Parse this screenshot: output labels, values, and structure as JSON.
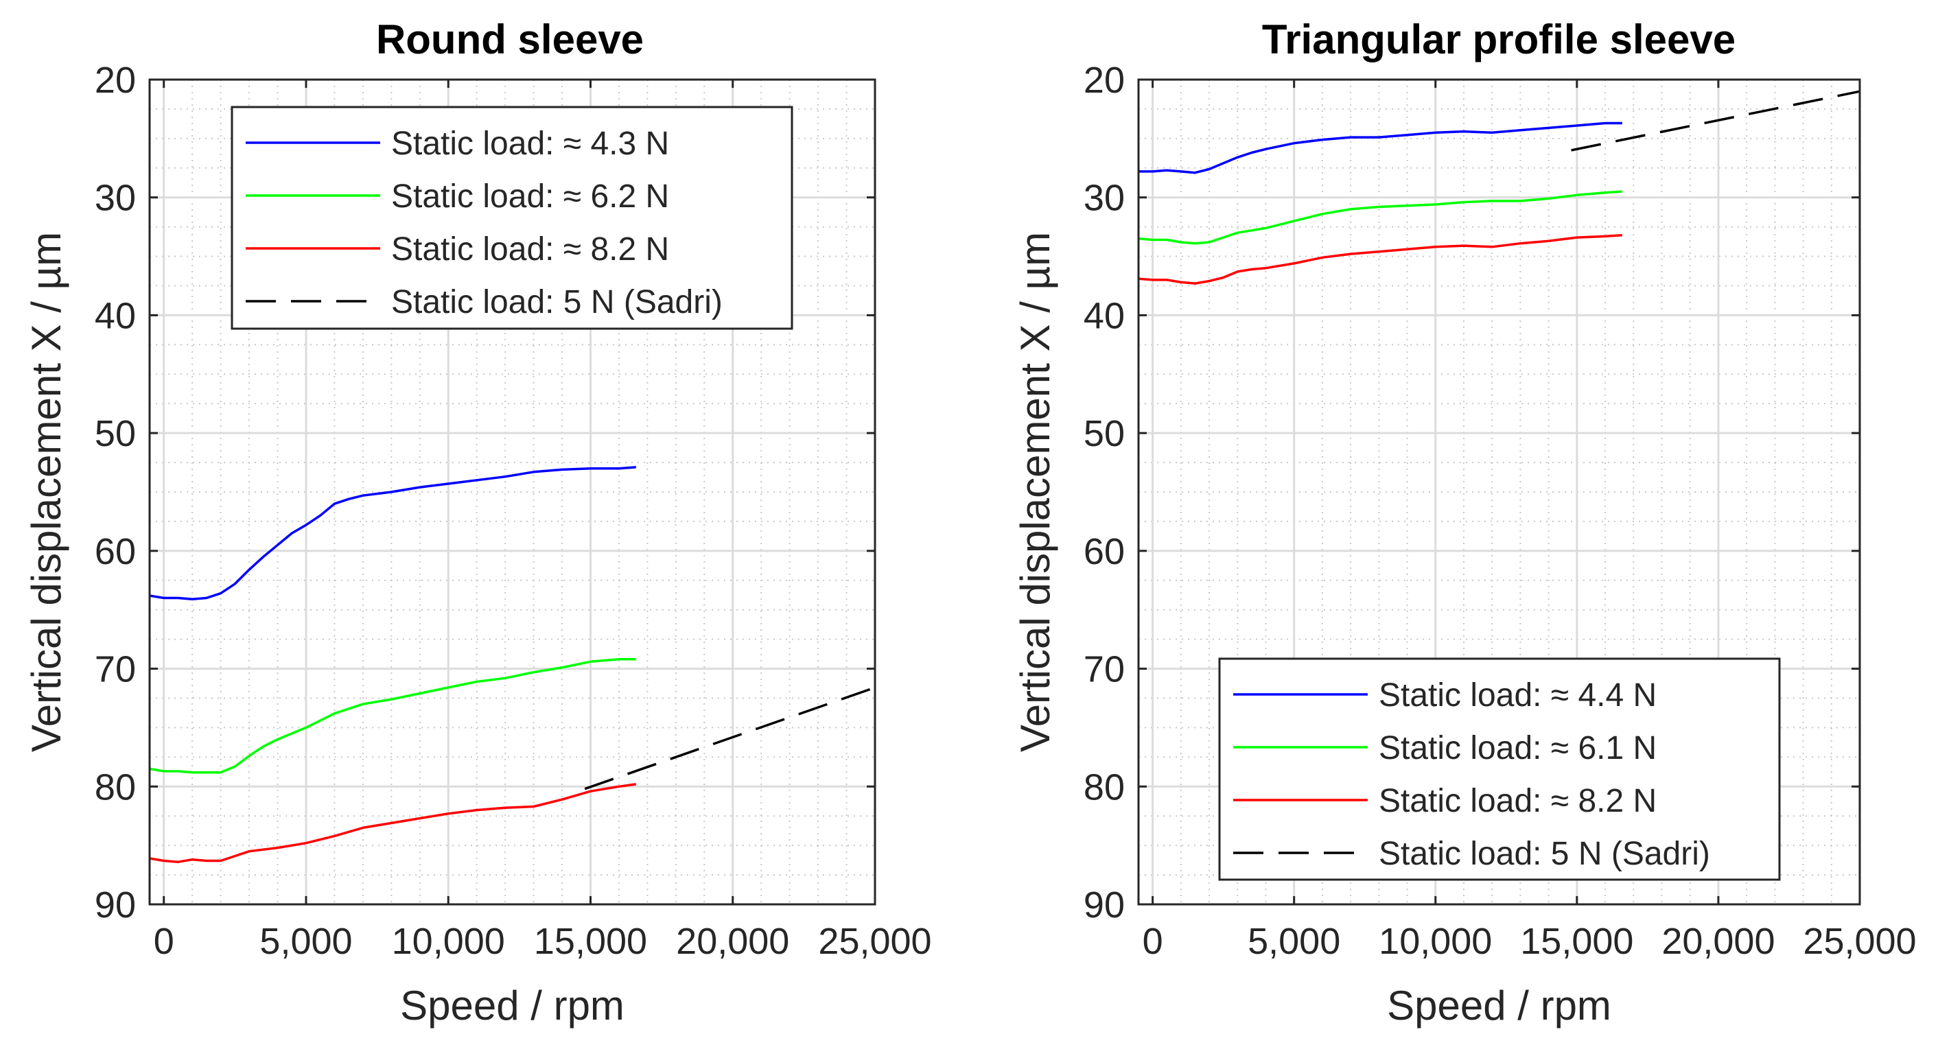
{
  "chart_data": [
    {
      "type": "line",
      "title": "Round sleeve",
      "xlabel": "Speed / rpm",
      "ylabel": "Vertical displacement X / µm",
      "xlim": [
        -500,
        25000
      ],
      "ylim": [
        20,
        90
      ],
      "y_reversed": true,
      "xticks": [
        0,
        5000,
        10000,
        15000,
        20000,
        25000
      ],
      "xtick_labels": [
        "0",
        "5,000",
        "10,000",
        "15,000",
        "20,000",
        "25,000"
      ],
      "yticks": [
        20,
        30,
        40,
        50,
        60,
        70,
        80,
        90
      ],
      "ytick_labels": [
        "20",
        "30",
        "40",
        "50",
        "60",
        "70",
        "80",
        "90"
      ],
      "grid": true,
      "minor_grid": true,
      "legend_position": "top-left",
      "series": [
        {
          "name": "Static load: ≈ 4.3 N",
          "color": "#0000ff",
          "style": "solid",
          "x": [
            -500,
            0,
            500,
            1000,
            1500,
            2000,
            2500,
            3000,
            3500,
            4000,
            4500,
            5000,
            5500,
            6000,
            6500,
            7000,
            8000,
            9000,
            10000,
            11000,
            12000,
            13000,
            14000,
            15000,
            16000,
            16600
          ],
          "y": [
            63.8,
            64,
            64,
            64.1,
            64,
            63.6,
            62.8,
            61.6,
            60.5,
            59.5,
            58.5,
            57.8,
            57,
            56,
            55.6,
            55.3,
            55,
            54.6,
            54.3,
            54,
            53.7,
            53.3,
            53.1,
            53,
            53,
            52.9
          ]
        },
        {
          "name": "Static load: ≈ 6.2 N",
          "color": "#00ff00",
          "style": "solid",
          "x": [
            -500,
            0,
            500,
            1000,
            1500,
            2000,
            2500,
            3000,
            3500,
            4000,
            5000,
            6000,
            7000,
            8000,
            9000,
            10000,
            11000,
            12000,
            13000,
            14000,
            15000,
            16000,
            16600
          ],
          "y": [
            78.5,
            78.7,
            78.7,
            78.8,
            78.8,
            78.8,
            78.3,
            77.4,
            76.6,
            76,
            75,
            73.8,
            73,
            72.6,
            72.1,
            71.6,
            71.1,
            70.8,
            70.3,
            69.9,
            69.4,
            69.2,
            69.2
          ]
        },
        {
          "name": "Static load: ≈ 8.2 N",
          "color": "#ff0000",
          "style": "solid",
          "x": [
            -500,
            0,
            500,
            1000,
            1500,
            2000,
            2500,
            3000,
            4000,
            5000,
            6000,
            7000,
            8000,
            9000,
            10000,
            11000,
            12000,
            13000,
            14000,
            15000,
            16000,
            16600
          ],
          "y": [
            86.1,
            86.3,
            86.4,
            86.2,
            86.3,
            86.3,
            85.9,
            85.5,
            85.2,
            84.8,
            84.2,
            83.5,
            83.1,
            82.7,
            82.3,
            82,
            81.8,
            81.7,
            81.1,
            80.4,
            80,
            79.8
          ]
        },
        {
          "name": "Static load: 5 N (Sadri)",
          "color": "#000000",
          "style": "dashed",
          "x": [
            14800,
            25000
          ],
          "y": [
            80.2,
            71.6
          ]
        }
      ]
    },
    {
      "type": "line",
      "title": "Triangular profile sleeve",
      "xlabel": "Speed / rpm",
      "ylabel": "Vertical displacement X / µm",
      "xlim": [
        -500,
        25000
      ],
      "ylim": [
        20,
        90
      ],
      "y_reversed": true,
      "xticks": [
        0,
        5000,
        10000,
        15000,
        20000,
        25000
      ],
      "xtick_labels": [
        "0",
        "5,000",
        "10,000",
        "15,000",
        "20,000",
        "25,000"
      ],
      "yticks": [
        20,
        30,
        40,
        50,
        60,
        70,
        80,
        90
      ],
      "ytick_labels": [
        "20",
        "30",
        "40",
        "50",
        "60",
        "70",
        "80",
        "90"
      ],
      "grid": true,
      "minor_grid": true,
      "legend_position": "bottom-left",
      "series": [
        {
          "name": "Static load: ≈ 4.4 N",
          "color": "#0000ff",
          "style": "solid",
          "x": [
            -500,
            0,
            500,
            1000,
            1500,
            2000,
            2500,
            3000,
            3500,
            4000,
            5000,
            6000,
            7000,
            8000,
            9000,
            10000,
            11000,
            12000,
            13000,
            14000,
            15000,
            16000,
            16600
          ],
          "y": [
            27.8,
            27.8,
            27.7,
            27.8,
            27.9,
            27.6,
            27.1,
            26.6,
            26.2,
            25.9,
            25.4,
            25.1,
            24.9,
            24.9,
            24.7,
            24.5,
            24.4,
            24.5,
            24.3,
            24.1,
            23.9,
            23.7,
            23.7
          ]
        },
        {
          "name": "Static load: ≈ 6.1 N",
          "color": "#00ff00",
          "style": "solid",
          "x": [
            -500,
            0,
            500,
            1000,
            1500,
            2000,
            2500,
            3000,
            3500,
            4000,
            5000,
            6000,
            7000,
            8000,
            9000,
            10000,
            11000,
            12000,
            13000,
            14000,
            15000,
            16000,
            16600
          ],
          "y": [
            33.5,
            33.6,
            33.6,
            33.8,
            33.9,
            33.8,
            33.4,
            33,
            32.8,
            32.6,
            32,
            31.4,
            31,
            30.8,
            30.7,
            30.6,
            30.4,
            30.3,
            30.3,
            30.1,
            29.8,
            29.6,
            29.5
          ]
        },
        {
          "name": "Static load: ≈ 8.2 N",
          "color": "#ff0000",
          "style": "solid",
          "x": [
            -500,
            0,
            500,
            1000,
            1500,
            2000,
            2500,
            3000,
            3500,
            4000,
            5000,
            6000,
            7000,
            8000,
            9000,
            10000,
            11000,
            12000,
            13000,
            14000,
            15000,
            16000,
            16600
          ],
          "y": [
            36.9,
            37,
            37,
            37.2,
            37.3,
            37.1,
            36.8,
            36.3,
            36.1,
            36,
            35.6,
            35.1,
            34.8,
            34.6,
            34.4,
            34.2,
            34.1,
            34.2,
            33.9,
            33.7,
            33.4,
            33.3,
            33.2
          ]
        },
        {
          "name": "Static load: 5 N (Sadri)",
          "color": "#000000",
          "style": "dashed",
          "x": [
            14800,
            25000
          ],
          "y": [
            26.0,
            21.0
          ]
        }
      ]
    }
  ]
}
